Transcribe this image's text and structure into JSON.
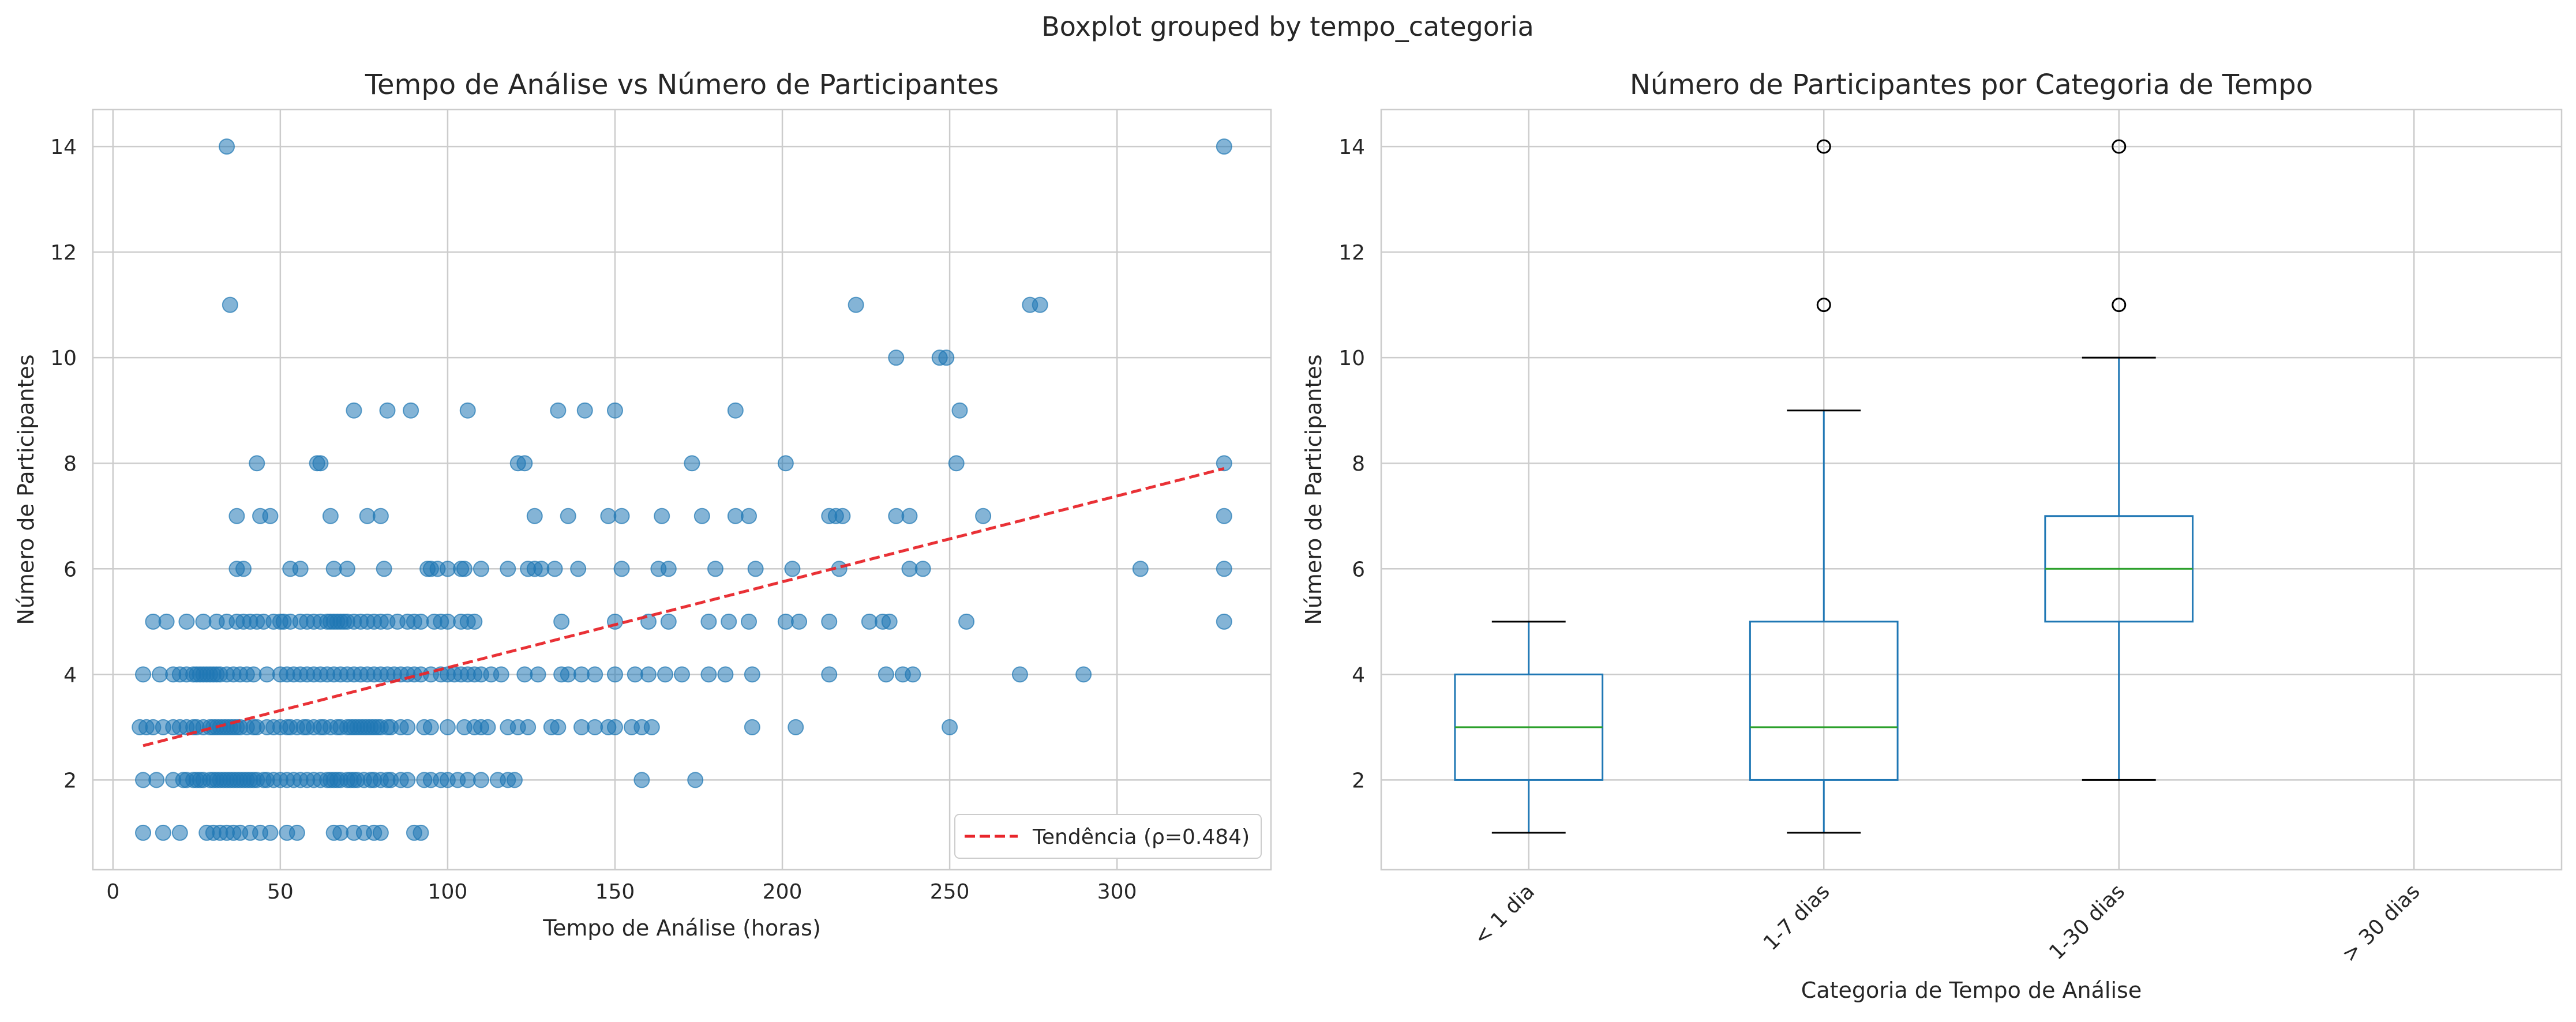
{
  "figure": {
    "suptitle": "Boxplot grouped by tempo_categoria"
  },
  "chart_data": [
    {
      "type": "scatter",
      "title": "Tempo de Análise vs Número de Participantes",
      "xlabel": "Tempo de Análise (horas)",
      "ylabel": "Número de Participantes",
      "xlim": [
        -6,
        346
      ],
      "ylim": [
        0.3,
        14.7
      ],
      "xticks": [
        0,
        50,
        100,
        150,
        200,
        250,
        300
      ],
      "yticks": [
        2,
        4,
        6,
        8,
        10,
        12,
        14
      ],
      "grid": true,
      "legend": {
        "position": "lower-right",
        "label": "Tendência (ρ=0.484)"
      },
      "colors": {
        "points": "#1f77b4",
        "trend": "#e8262b"
      },
      "trend": {
        "x": [
          9,
          332
        ],
        "y": [
          2.65,
          7.9
        ]
      },
      "points": [
        [
          9,
          1
        ],
        [
          15,
          1
        ],
        [
          20,
          1
        ],
        [
          28,
          1
        ],
        [
          30,
          1
        ],
        [
          32,
          1
        ],
        [
          34,
          1
        ],
        [
          36,
          1
        ],
        [
          38,
          1
        ],
        [
          41,
          1
        ],
        [
          44,
          1
        ],
        [
          47,
          1
        ],
        [
          52,
          1
        ],
        [
          55,
          1
        ],
        [
          66,
          1
        ],
        [
          68,
          1
        ],
        [
          72,
          1
        ],
        [
          75,
          1
        ],
        [
          78,
          1
        ],
        [
          80,
          1
        ],
        [
          90,
          1
        ],
        [
          92,
          1
        ],
        [
          9,
          2
        ],
        [
          13,
          2
        ],
        [
          18,
          2
        ],
        [
          21,
          2
        ],
        [
          22,
          2
        ],
        [
          24,
          2
        ],
        [
          25,
          2
        ],
        [
          26,
          2
        ],
        [
          27,
          2
        ],
        [
          29,
          2
        ],
        [
          30,
          2
        ],
        [
          31,
          2
        ],
        [
          32,
          2
        ],
        [
          33,
          2
        ],
        [
          34,
          2
        ],
        [
          35,
          2
        ],
        [
          36,
          2
        ],
        [
          37,
          2
        ],
        [
          38,
          2
        ],
        [
          39,
          2
        ],
        [
          40,
          2
        ],
        [
          41,
          2
        ],
        [
          42,
          2
        ],
        [
          43,
          2
        ],
        [
          45,
          2
        ],
        [
          46,
          2
        ],
        [
          48,
          2
        ],
        [
          50,
          2
        ],
        [
          52,
          2
        ],
        [
          54,
          2
        ],
        [
          56,
          2
        ],
        [
          58,
          2
        ],
        [
          60,
          2
        ],
        [
          62,
          2
        ],
        [
          64,
          2
        ],
        [
          65,
          2
        ],
        [
          66,
          2
        ],
        [
          67,
          2
        ],
        [
          68,
          2
        ],
        [
          70,
          2
        ],
        [
          71,
          2
        ],
        [
          72,
          2
        ],
        [
          73,
          2
        ],
        [
          75,
          2
        ],
        [
          77,
          2
        ],
        [
          78,
          2
        ],
        [
          80,
          2
        ],
        [
          82,
          2
        ],
        [
          83,
          2
        ],
        [
          86,
          2
        ],
        [
          88,
          2
        ],
        [
          93,
          2
        ],
        [
          95,
          2
        ],
        [
          98,
          2
        ],
        [
          100,
          2
        ],
        [
          103,
          2
        ],
        [
          106,
          2
        ],
        [
          110,
          2
        ],
        [
          115,
          2
        ],
        [
          118,
          2
        ],
        [
          120,
          2
        ],
        [
          158,
          2
        ],
        [
          174,
          2
        ],
        [
          8,
          3
        ],
        [
          10,
          3
        ],
        [
          12,
          3
        ],
        [
          15,
          3
        ],
        [
          18,
          3
        ],
        [
          20,
          3
        ],
        [
          22,
          3
        ],
        [
          24,
          3
        ],
        [
          25,
          3
        ],
        [
          27,
          3
        ],
        [
          29,
          3
        ],
        [
          30,
          3
        ],
        [
          31,
          3
        ],
        [
          32,
          3
        ],
        [
          33,
          3
        ],
        [
          34,
          3
        ],
        [
          35,
          3
        ],
        [
          36,
          3
        ],
        [
          37,
          3
        ],
        [
          38,
          3
        ],
        [
          40,
          3
        ],
        [
          42,
          3
        ],
        [
          43,
          3
        ],
        [
          46,
          3
        ],
        [
          48,
          3
        ],
        [
          50,
          3
        ],
        [
          52,
          3
        ],
        [
          53,
          3
        ],
        [
          55,
          3
        ],
        [
          57,
          3
        ],
        [
          58,
          3
        ],
        [
          60,
          3
        ],
        [
          62,
          3
        ],
        [
          63,
          3
        ],
        [
          65,
          3
        ],
        [
          67,
          3
        ],
        [
          68,
          3
        ],
        [
          70,
          3
        ],
        [
          71,
          3
        ],
        [
          72,
          3
        ],
        [
          73,
          3
        ],
        [
          74,
          3
        ],
        [
          75,
          3
        ],
        [
          76,
          3
        ],
        [
          77,
          3
        ],
        [
          78,
          3
        ],
        [
          79,
          3
        ],
        [
          80,
          3
        ],
        [
          82,
          3
        ],
        [
          83,
          3
        ],
        [
          86,
          3
        ],
        [
          88,
          3
        ],
        [
          93,
          3
        ],
        [
          95,
          3
        ],
        [
          100,
          3
        ],
        [
          105,
          3
        ],
        [
          108,
          3
        ],
        [
          110,
          3
        ],
        [
          112,
          3
        ],
        [
          118,
          3
        ],
        [
          121,
          3
        ],
        [
          124,
          3
        ],
        [
          131,
          3
        ],
        [
          133,
          3
        ],
        [
          140,
          3
        ],
        [
          144,
          3
        ],
        [
          148,
          3
        ],
        [
          150,
          3
        ],
        [
          155,
          3
        ],
        [
          158,
          3
        ],
        [
          161,
          3
        ],
        [
          191,
          3
        ],
        [
          204,
          3
        ],
        [
          250,
          3
        ],
        [
          9,
          4
        ],
        [
          14,
          4
        ],
        [
          18,
          4
        ],
        [
          20,
          4
        ],
        [
          22,
          4
        ],
        [
          24,
          4
        ],
        [
          25,
          4
        ],
        [
          26,
          4
        ],
        [
          27,
          4
        ],
        [
          28,
          4
        ],
        [
          29,
          4
        ],
        [
          30,
          4
        ],
        [
          31,
          4
        ],
        [
          32,
          4
        ],
        [
          34,
          4
        ],
        [
          36,
          4
        ],
        [
          38,
          4
        ],
        [
          40,
          4
        ],
        [
          42,
          4
        ],
        [
          46,
          4
        ],
        [
          50,
          4
        ],
        [
          52,
          4
        ],
        [
          54,
          4
        ],
        [
          56,
          4
        ],
        [
          58,
          4
        ],
        [
          60,
          4
        ],
        [
          62,
          4
        ],
        [
          64,
          4
        ],
        [
          66,
          4
        ],
        [
          68,
          4
        ],
        [
          70,
          4
        ],
        [
          72,
          4
        ],
        [
          74,
          4
        ],
        [
          76,
          4
        ],
        [
          78,
          4
        ],
        [
          80,
          4
        ],
        [
          82,
          4
        ],
        [
          84,
          4
        ],
        [
          86,
          4
        ],
        [
          88,
          4
        ],
        [
          90,
          4
        ],
        [
          92,
          4
        ],
        [
          95,
          4
        ],
        [
          98,
          4
        ],
        [
          100,
          4
        ],
        [
          102,
          4
        ],
        [
          104,
          4
        ],
        [
          106,
          4
        ],
        [
          108,
          4
        ],
        [
          110,
          4
        ],
        [
          113,
          4
        ],
        [
          116,
          4
        ],
        [
          123,
          4
        ],
        [
          127,
          4
        ],
        [
          134,
          4
        ],
        [
          136,
          4
        ],
        [
          140,
          4
        ],
        [
          144,
          4
        ],
        [
          150,
          4
        ],
        [
          156,
          4
        ],
        [
          160,
          4
        ],
        [
          165,
          4
        ],
        [
          170,
          4
        ],
        [
          178,
          4
        ],
        [
          183,
          4
        ],
        [
          191,
          4
        ],
        [
          214,
          4
        ],
        [
          231,
          4
        ],
        [
          236,
          4
        ],
        [
          239,
          4
        ],
        [
          271,
          4
        ],
        [
          290,
          4
        ],
        [
          12,
          5
        ],
        [
          16,
          5
        ],
        [
          22,
          5
        ],
        [
          27,
          5
        ],
        [
          31,
          5
        ],
        [
          34,
          5
        ],
        [
          37,
          5
        ],
        [
          39,
          5
        ],
        [
          41,
          5
        ],
        [
          43,
          5
        ],
        [
          45,
          5
        ],
        [
          48,
          5
        ],
        [
          50,
          5
        ],
        [
          51,
          5
        ],
        [
          53,
          5
        ],
        [
          56,
          5
        ],
        [
          58,
          5
        ],
        [
          60,
          5
        ],
        [
          62,
          5
        ],
        [
          64,
          5
        ],
        [
          65,
          5
        ],
        [
          66,
          5
        ],
        [
          67,
          5
        ],
        [
          68,
          5
        ],
        [
          69,
          5
        ],
        [
          70,
          5
        ],
        [
          72,
          5
        ],
        [
          74,
          5
        ],
        [
          76,
          5
        ],
        [
          78,
          5
        ],
        [
          80,
          5
        ],
        [
          82,
          5
        ],
        [
          85,
          5
        ],
        [
          88,
          5
        ],
        [
          90,
          5
        ],
        [
          92,
          5
        ],
        [
          96,
          5
        ],
        [
          98,
          5
        ],
        [
          100,
          5
        ],
        [
          104,
          5
        ],
        [
          106,
          5
        ],
        [
          108,
          5
        ],
        [
          134,
          5
        ],
        [
          150,
          5
        ],
        [
          160,
          5
        ],
        [
          166,
          5
        ],
        [
          178,
          5
        ],
        [
          184,
          5
        ],
        [
          190,
          5
        ],
        [
          201,
          5
        ],
        [
          205,
          5
        ],
        [
          214,
          5
        ],
        [
          226,
          5
        ],
        [
          230,
          5
        ],
        [
          232,
          5
        ],
        [
          255,
          5
        ],
        [
          332,
          5
        ],
        [
          37,
          6
        ],
        [
          39,
          6
        ],
        [
          53,
          6
        ],
        [
          56,
          6
        ],
        [
          66,
          6
        ],
        [
          70,
          6
        ],
        [
          81,
          6
        ],
        [
          94,
          6
        ],
        [
          95,
          6
        ],
        [
          97,
          6
        ],
        [
          100,
          6
        ],
        [
          104,
          6
        ],
        [
          105,
          6
        ],
        [
          110,
          6
        ],
        [
          118,
          6
        ],
        [
          124,
          6
        ],
        [
          126,
          6
        ],
        [
          128,
          6
        ],
        [
          132,
          6
        ],
        [
          139,
          6
        ],
        [
          152,
          6
        ],
        [
          163,
          6
        ],
        [
          166,
          6
        ],
        [
          180,
          6
        ],
        [
          192,
          6
        ],
        [
          203,
          6
        ],
        [
          217,
          6
        ],
        [
          238,
          6
        ],
        [
          242,
          6
        ],
        [
          307,
          6
        ],
        [
          332,
          6
        ],
        [
          37,
          7
        ],
        [
          44,
          7
        ],
        [
          47,
          7
        ],
        [
          65,
          7
        ],
        [
          76,
          7
        ],
        [
          80,
          7
        ],
        [
          126,
          7
        ],
        [
          136,
          7
        ],
        [
          148,
          7
        ],
        [
          152,
          7
        ],
        [
          164,
          7
        ],
        [
          176,
          7
        ],
        [
          186,
          7
        ],
        [
          190,
          7
        ],
        [
          214,
          7
        ],
        [
          216,
          7
        ],
        [
          218,
          7
        ],
        [
          234,
          7
        ],
        [
          238,
          7
        ],
        [
          260,
          7
        ],
        [
          332,
          7
        ],
        [
          43,
          8
        ],
        [
          61,
          8
        ],
        [
          62,
          8
        ],
        [
          121,
          8
        ],
        [
          123,
          8
        ],
        [
          173,
          8
        ],
        [
          201,
          8
        ],
        [
          252,
          8
        ],
        [
          332,
          8
        ],
        [
          72,
          9
        ],
        [
          82,
          9
        ],
        [
          89,
          9
        ],
        [
          106,
          9
        ],
        [
          133,
          9
        ],
        [
          141,
          9
        ],
        [
          150,
          9
        ],
        [
          186,
          9
        ],
        [
          253,
          9
        ],
        [
          234,
          10
        ],
        [
          247,
          10
        ],
        [
          249,
          10
        ],
        [
          35,
          11
        ],
        [
          222,
          11
        ],
        [
          274,
          11
        ],
        [
          277,
          11
        ],
        [
          34,
          14
        ],
        [
          332,
          14
        ]
      ]
    },
    {
      "type": "box",
      "title": "Número de Participantes por Categoria de Tempo",
      "xlabel": "Categoria de Tempo de Análise",
      "ylabel": "Número de Participantes",
      "ylim": [
        0.3,
        14.7
      ],
      "yticks": [
        2,
        4,
        6,
        8,
        10,
        12,
        14
      ],
      "grid": true,
      "tick_rotation": 45,
      "colors": {
        "box": "#1f77b4",
        "median": "#2ca02c",
        "whisker_cap": "#000000",
        "flier": "#000000"
      },
      "categories": [
        "< 1 dia",
        "1-7 dias",
        "1-30 dias",
        "> 30 dias"
      ],
      "boxes": [
        {
          "category": "< 1 dia",
          "whislo": 1,
          "q1": 2,
          "median": 3,
          "q3": 4,
          "whishi": 5,
          "fliers": []
        },
        {
          "category": "1-7 dias",
          "whislo": 1,
          "q1": 2,
          "median": 3,
          "q3": 5,
          "whishi": 9,
          "fliers": [
            11,
            14
          ]
        },
        {
          "category": "1-30 dias",
          "whislo": 2,
          "q1": 5,
          "median": 6,
          "q3": 7,
          "whishi": 10,
          "fliers": [
            11,
            14
          ]
        },
        {
          "category": "> 30 dias",
          "empty": true
        }
      ]
    }
  ]
}
